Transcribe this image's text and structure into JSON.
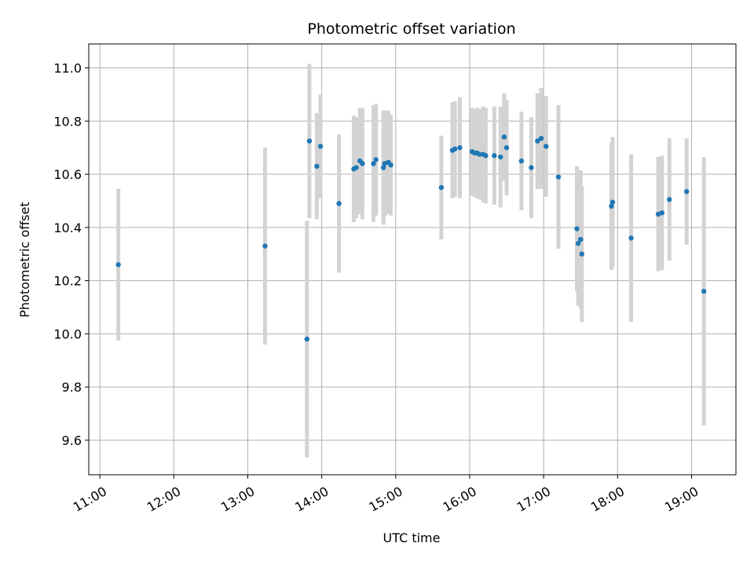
{
  "chart_data": {
    "type": "scatter",
    "title": "Photometric offset variation",
    "xlabel": "UTC time",
    "ylabel": "Photometric offset",
    "x_unit": "hours UTC",
    "xlim": [
      "10:51",
      "19:36"
    ],
    "ylim": [
      9.47,
      11.09
    ],
    "x_ticks": [
      "11:00",
      "12:00",
      "13:00",
      "14:00",
      "15:00",
      "16:00",
      "17:00",
      "18:00",
      "19:00"
    ],
    "y_ticks": [
      "9.6",
      "9.8",
      "10.0",
      "10.2",
      "10.4",
      "10.6",
      "10.8",
      "11.0"
    ],
    "grid": true,
    "legend": "none",
    "colors": {
      "points": "#1f77b4",
      "errorbars": "#d3d3d3",
      "grid": "#b0b0b0"
    },
    "series": [
      {
        "x": [
          "11:15",
          "13:14",
          "13:48",
          "13:50",
          "13:56",
          "13:59",
          "14:14",
          "14:26",
          "14:28",
          "14:31",
          "14:33",
          "14:42",
          "14:44",
          "14:50",
          "14:51",
          "14:54",
          "14:56",
          "15:37",
          "15:46",
          "15:48",
          "15:52",
          "16:02",
          "16:04",
          "16:06",
          "16:08",
          "16:11",
          "16:13",
          "16:20",
          "16:25",
          "16:28",
          "16:30",
          "16:42",
          "16:50",
          "16:55",
          "16:58",
          "17:02",
          "17:12",
          "17:27",
          "17:28",
          "17:30",
          "17:31",
          "17:55",
          "17:56",
          "18:11",
          "18:33",
          "18:36",
          "18:42",
          "18:56",
          "19:10"
        ],
        "y": [
          10.26,
          10.33,
          9.98,
          10.725,
          10.63,
          10.705,
          10.49,
          10.62,
          10.625,
          10.65,
          10.64,
          10.64,
          10.655,
          10.625,
          10.64,
          10.645,
          10.635,
          10.55,
          10.69,
          10.695,
          10.7,
          10.685,
          10.68,
          10.68,
          10.675,
          10.675,
          10.67,
          10.67,
          10.665,
          10.74,
          10.7,
          10.65,
          10.625,
          10.725,
          10.735,
          10.705,
          10.59,
          10.395,
          10.34,
          10.355,
          10.3,
          10.48,
          10.495,
          10.36,
          10.45,
          10.455,
          10.505,
          10.535,
          10.16
        ],
        "yerr": [
          0.285,
          0.37,
          0.445,
          0.29,
          0.2,
          0.195,
          0.26,
          0.2,
          0.19,
          0.2,
          0.21,
          0.22,
          0.21,
          0.215,
          0.2,
          0.195,
          0.19,
          0.195,
          0.18,
          0.18,
          0.19,
          0.165,
          0.165,
          0.17,
          0.17,
          0.18,
          0.18,
          0.185,
          0.19,
          0.165,
          0.18,
          0.185,
          0.19,
          0.18,
          0.19,
          0.19,
          0.27,
          0.235,
          0.235,
          0.26,
          0.255,
          0.24,
          0.245,
          0.315,
          0.215,
          0.215,
          0.23,
          0.2,
          0.505
        ]
      }
    ]
  }
}
